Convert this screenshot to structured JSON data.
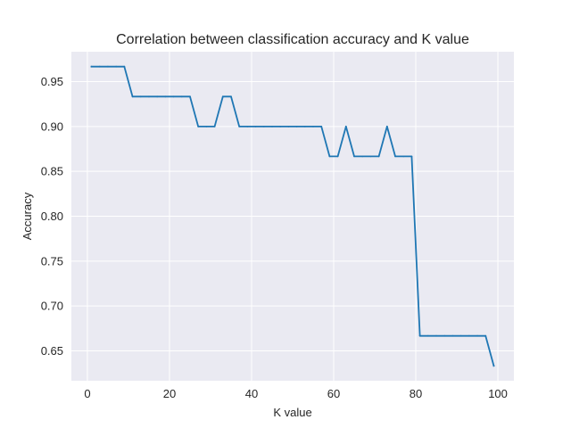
{
  "chart_data": {
    "type": "line",
    "title": "Correlation between classification accuracy and K value",
    "xlabel": "K value",
    "ylabel": "Accuracy",
    "xlim": [
      -3.9,
      103.9
    ],
    "ylim": [
      0.6167,
      0.9833
    ],
    "x_ticks": [
      0,
      20,
      40,
      60,
      80,
      100
    ],
    "y_ticks": [
      0.65,
      0.7,
      0.75,
      0.8,
      0.85,
      0.9,
      0.95
    ],
    "grid": true,
    "series": [
      {
        "color": "#1f77b4",
        "x": [
          1,
          3,
          5,
          7,
          9,
          11,
          13,
          15,
          17,
          19,
          21,
          23,
          25,
          27,
          29,
          31,
          33,
          35,
          37,
          39,
          41,
          43,
          45,
          47,
          49,
          51,
          53,
          55,
          57,
          59,
          61,
          63,
          65,
          67,
          69,
          71,
          73,
          75,
          77,
          79,
          81,
          83,
          85,
          87,
          89,
          91,
          93,
          95,
          97,
          99
        ],
        "y": [
          0.9667,
          0.9667,
          0.9667,
          0.9667,
          0.9667,
          0.9333,
          0.9333,
          0.9333,
          0.9333,
          0.9333,
          0.9333,
          0.9333,
          0.9333,
          0.9,
          0.9,
          0.9,
          0.9333,
          0.9333,
          0.9,
          0.9,
          0.9,
          0.9,
          0.9,
          0.9,
          0.9,
          0.9,
          0.9,
          0.9,
          0.9,
          0.8667,
          0.8667,
          0.9,
          0.8667,
          0.8667,
          0.8667,
          0.8667,
          0.9,
          0.8667,
          0.8667,
          0.8667,
          0.6667,
          0.6667,
          0.6667,
          0.6667,
          0.6667,
          0.6667,
          0.6667,
          0.6667,
          0.6667,
          0.6333
        ]
      }
    ]
  }
}
